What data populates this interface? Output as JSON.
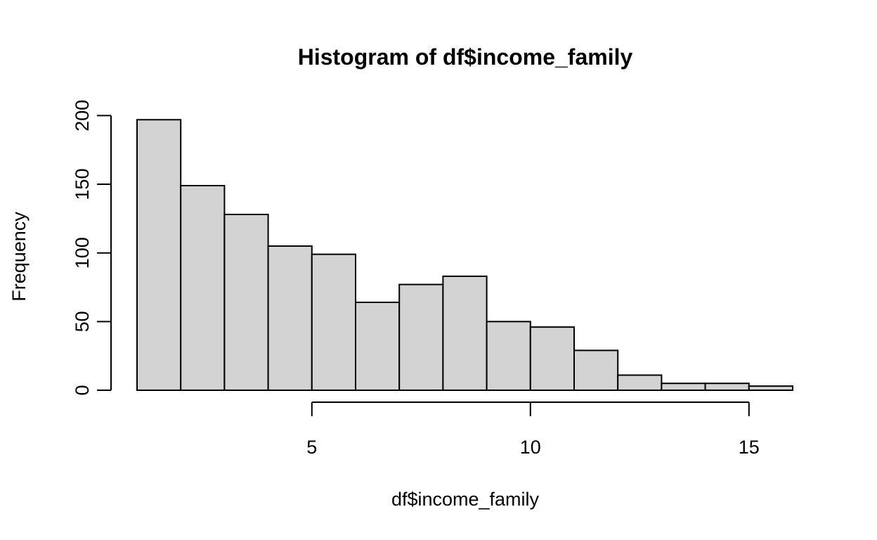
{
  "chart_data": {
    "type": "bar",
    "title": "Histogram of df$income_family",
    "xlabel": "df$income_family",
    "ylabel": "Frequency",
    "bins": [
      {
        "from": 1,
        "to": 2,
        "count": 197
      },
      {
        "from": 2,
        "to": 3,
        "count": 149
      },
      {
        "from": 3,
        "to": 4,
        "count": 128
      },
      {
        "from": 4,
        "to": 5,
        "count": 105
      },
      {
        "from": 5,
        "to": 6,
        "count": 99
      },
      {
        "from": 6,
        "to": 7,
        "count": 64
      },
      {
        "from": 7,
        "to": 8,
        "count": 77
      },
      {
        "from": 8,
        "to": 9,
        "count": 83
      },
      {
        "from": 9,
        "to": 10,
        "count": 50
      },
      {
        "from": 10,
        "to": 11,
        "count": 46
      },
      {
        "from": 11,
        "to": 12,
        "count": 29
      },
      {
        "from": 12,
        "to": 13,
        "count": 11
      },
      {
        "from": 13,
        "to": 14,
        "count": 5
      },
      {
        "from": 14,
        "to": 15,
        "count": 5
      },
      {
        "from": 15,
        "to": 16,
        "count": 3
      }
    ],
    "x_ticks": [
      5,
      10,
      15
    ],
    "y_ticks": [
      0,
      50,
      100,
      150,
      200
    ],
    "xlim": [
      1,
      16
    ],
    "ylim": [
      0,
      200
    ],
    "grid": false,
    "colors": {
      "bar_fill": "#d3d3d3",
      "bar_stroke": "#000000"
    }
  }
}
